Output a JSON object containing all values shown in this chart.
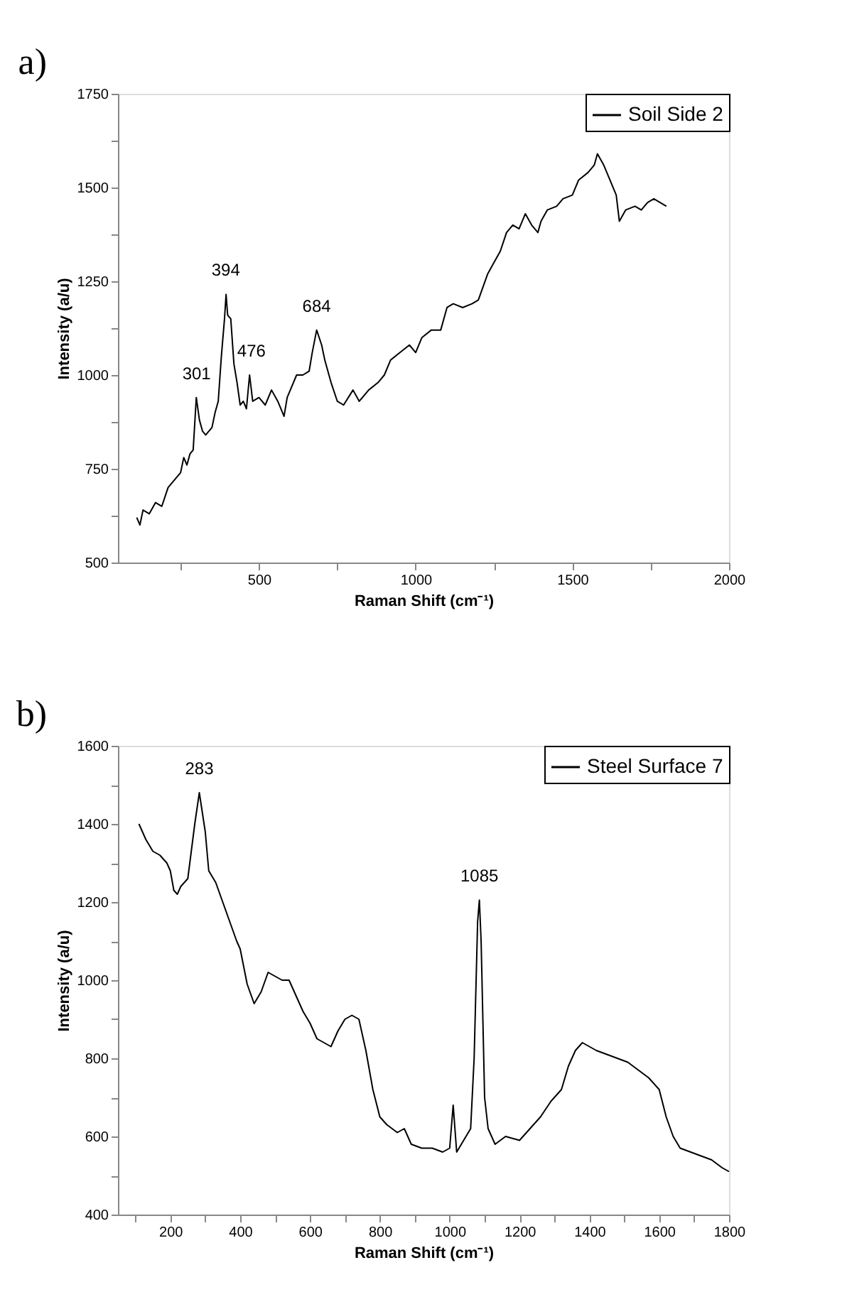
{
  "chart_data": [
    {
      "type": "line",
      "xlabel": "Raman Shift (cm⁻¹)",
      "ylabel": "Intensity (a/u)",
      "legend": "top right",
      "grid": false,
      "marker": "none",
      "line_style": "solid",
      "xlim": [
        50,
        2000
      ],
      "xticks": [
        {
          "value": 250,
          "label": null
        },
        500,
        {
          "value": 750,
          "label": null
        },
        1000,
        {
          "value": 1250,
          "label": null
        },
        1500,
        {
          "value": 1750,
          "label": null
        },
        2000
      ],
      "ylim": [
        500,
        1750
      ],
      "yticks": [
        500,
        {
          "value": 625,
          "label": null
        },
        750,
        {
          "value": 875,
          "label": null
        },
        1000,
        {
          "value": 1125,
          "label": null
        },
        1250,
        {
          "value": 1375,
          "label": null
        },
        1500,
        {
          "value": 1625,
          "label": null
        },
        1750
      ],
      "annotations": [
        "a)",
        {
          "text": "301",
          "x": 301,
          "y": 940
        },
        {
          "text": "394",
          "x": 394,
          "y": 1215
        },
        {
          "text": "476",
          "x": 476,
          "y": 1000
        },
        {
          "text": "684",
          "x": 684,
          "y": 1120
        }
      ],
      "series": [
        {
          "name": "Soil Side 2",
          "color": "#000000",
          "x": [
            110,
            120,
            130,
            150,
            170,
            190,
            210,
            230,
            250,
            260,
            270,
            280,
            290,
            300,
            310,
            320,
            330,
            350,
            360,
            370,
            380,
            390,
            395,
            400,
            410,
            420,
            430,
            440,
            450,
            460,
            470,
            480,
            500,
            520,
            540,
            560,
            580,
            590,
            600,
            620,
            640,
            660,
            670,
            684,
            700,
            710,
            730,
            750,
            770,
            800,
            820,
            850,
            880,
            900,
            920,
            950,
            980,
            1000,
            1020,
            1050,
            1080,
            1100,
            1120,
            1150,
            1180,
            1200,
            1230,
            1250,
            1270,
            1290,
            1310,
            1330,
            1350,
            1370,
            1390,
            1400,
            1420,
            1450,
            1470,
            1500,
            1520,
            1550,
            1570,
            1580,
            1600,
            1620,
            1640,
            1650,
            1670,
            1700,
            1720,
            1740,
            1760,
            1780,
            1800
          ],
          "values": [
            620,
            600,
            640,
            630,
            660,
            650,
            700,
            720,
            740,
            780,
            760,
            790,
            800,
            940,
            880,
            850,
            840,
            860,
            900,
            930,
            1050,
            1150,
            1215,
            1160,
            1150,
            1030,
            980,
            920,
            930,
            910,
            1000,
            930,
            940,
            920,
            960,
            930,
            890,
            940,
            960,
            1000,
            1000,
            1010,
            1060,
            1120,
            1080,
            1040,
            980,
            930,
            920,
            960,
            930,
            960,
            980,
            1000,
            1040,
            1060,
            1080,
            1060,
            1100,
            1120,
            1120,
            1180,
            1190,
            1180,
            1190,
            1200,
            1270,
            1300,
            1330,
            1380,
            1400,
            1390,
            1430,
            1400,
            1380,
            1410,
            1440,
            1450,
            1470,
            1480,
            1520,
            1540,
            1560,
            1590,
            1560,
            1520,
            1480,
            1410,
            1440,
            1450,
            1440,
            1460,
            1470,
            1460,
            1450
          ]
        }
      ]
    },
    {
      "type": "line",
      "xlabel": "Raman Shift (cm⁻¹)",
      "ylabel": "Intensity (a/u)",
      "legend": "top right",
      "grid": false,
      "marker": "none",
      "line_style": "solid",
      "xlim": [
        50,
        1800
      ],
      "xticks": [
        {
          "value": 100,
          "label": null
        },
        200,
        {
          "value": 300,
          "label": null
        },
        400,
        {
          "value": 500,
          "label": null
        },
        600,
        {
          "value": 700,
          "label": null
        },
        800,
        {
          "value": 900,
          "label": null
        },
        1000,
        {
          "value": 1100,
          "label": null
        },
        1200,
        {
          "value": 1300,
          "label": null
        },
        1400,
        {
          "value": 1500,
          "label": null
        },
        1600,
        {
          "value": 1700,
          "label": null
        },
        1800
      ],
      "ylim": [
        400,
        1600
      ],
      "yticks": [
        400,
        {
          "value": 500,
          "label": null
        },
        600,
        {
          "value": 700,
          "label": null
        },
        800,
        {
          "value": 900,
          "label": null
        },
        1000,
        {
          "value": 1100,
          "label": null
        },
        1200,
        {
          "value": 1300,
          "label": null
        },
        1400,
        {
          "value": 1500,
          "label": null
        },
        1600
      ],
      "annotations": [
        "b)",
        {
          "text": "283",
          "x": 283,
          "y": 1480
        },
        {
          "text": "1085",
          "x": 1085,
          "y": 1205
        }
      ],
      "series": [
        {
          "name": "Steel Surface 7",
          "color": "#000000",
          "x": [
            110,
            120,
            130,
            150,
            170,
            190,
            200,
            210,
            220,
            230,
            250,
            270,
            283,
            300,
            310,
            330,
            350,
            370,
            390,
            400,
            420,
            440,
            460,
            480,
            500,
            520,
            540,
            560,
            580,
            600,
            620,
            640,
            660,
            680,
            700,
            720,
            740,
            760,
            780,
            800,
            820,
            850,
            870,
            890,
            920,
            950,
            980,
            1000,
            1010,
            1020,
            1040,
            1060,
            1070,
            1080,
            1085,
            1090,
            1100,
            1110,
            1130,
            1160,
            1200,
            1230,
            1260,
            1290,
            1320,
            1340,
            1360,
            1380,
            1400,
            1420,
            1450,
            1480,
            1510,
            1540,
            1570,
            1600,
            1620,
            1640,
            1660,
            1690,
            1720,
            1750,
            1780,
            1800
          ],
          "values": [
            1400,
            1380,
            1360,
            1330,
            1320,
            1300,
            1280,
            1230,
            1220,
            1240,
            1260,
            1400,
            1480,
            1380,
            1280,
            1250,
            1200,
            1150,
            1100,
            1080,
            990,
            940,
            970,
            1020,
            1010,
            1000,
            1000,
            960,
            920,
            890,
            850,
            840,
            830,
            870,
            900,
            910,
            900,
            820,
            720,
            650,
            630,
            610,
            620,
            580,
            570,
            570,
            560,
            570,
            680,
            560,
            590,
            620,
            800,
            1150,
            1205,
            1100,
            700,
            620,
            580,
            600,
            590,
            620,
            650,
            690,
            720,
            780,
            820,
            840,
            830,
            820,
            810,
            800,
            790,
            770,
            750,
            720,
            650,
            600,
            570,
            560,
            550,
            540,
            520,
            510
          ]
        }
      ]
    }
  ]
}
